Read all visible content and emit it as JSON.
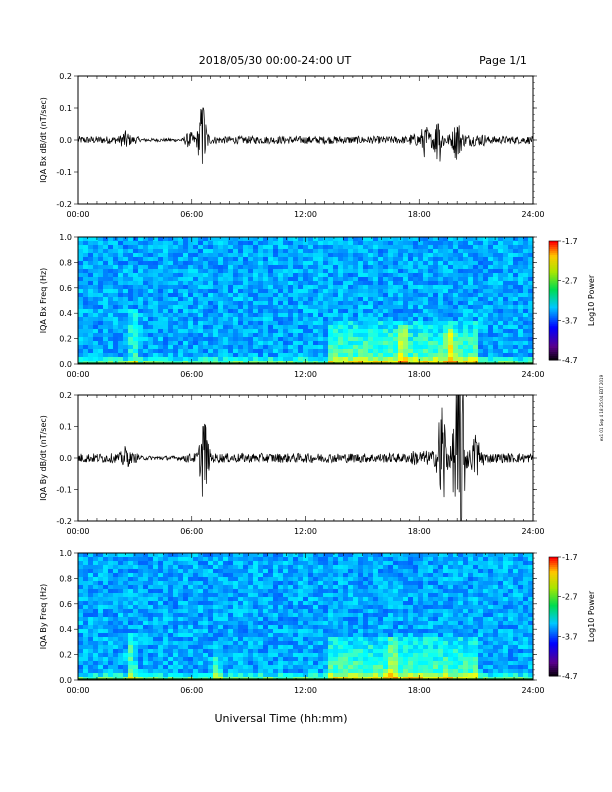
{
  "header": {
    "title": "2018/05/30  00:00-24:00 UT",
    "page": "Page 1/1"
  },
  "footer": {
    "xlabel": "Universal Time (hh:mm)",
    "side_note": "ex1 01 Sep 4 18:25:04 EDT 2019"
  },
  "colorbar": {
    "label": "Log10 Power",
    "ticks": [
      "-1.7",
      "-2.7",
      "-3.7",
      "-4.7"
    ]
  },
  "chart_data": [
    {
      "type": "line",
      "ylabel": "IQA Bx dB/dt (nT/sec)",
      "ylim": [
        -0.2,
        0.2
      ],
      "yticks": [
        "0.2",
        "0.1",
        "0.0",
        "-0.1",
        "-0.2"
      ],
      "xticks": [
        "00:00",
        "06:00",
        "12:00",
        "18:00",
        "24:00"
      ],
      "xlim_hours": [
        0,
        24
      ],
      "baseline_amplitude": 0.012,
      "bursts": [
        {
          "t": 2.5,
          "amp": 0.03
        },
        {
          "t": 5.9,
          "amp": 0.02
        },
        {
          "t": 6.5,
          "amp": 0.05
        },
        {
          "t": 6.6,
          "amp": 0.1
        },
        {
          "t": 18.3,
          "amp": 0.03
        },
        {
          "t": 19.0,
          "amp": 0.05
        },
        {
          "t": 20.0,
          "amp": 0.04
        }
      ],
      "color": "#000000"
    },
    {
      "type": "heatmap",
      "ylabel": "IQA Bx Freq (Hz)",
      "ylim": [
        0,
        1.0
      ],
      "yticks": [
        "1.0",
        "0.8",
        "0.6",
        "0.4",
        "0.2",
        "0.0"
      ],
      "xticks": [
        "00:00",
        "06:00",
        "12:00",
        "18:00",
        "24:00"
      ],
      "zlim": [
        -4.7,
        -1.7
      ],
      "color_scale": "log10 power",
      "features": [
        {
          "t": 2.8,
          "f_max": 0.45,
          "level": -3.1
        },
        {
          "t": 17.0,
          "f_max": 0.32,
          "level": -3.0
        },
        {
          "t": 19.5,
          "f_max": 0.28,
          "level": -3.1
        }
      ]
    },
    {
      "type": "line",
      "ylabel": "IQA By dB/dt (nT/sec)",
      "ylim": [
        -0.2,
        0.2
      ],
      "yticks": [
        "0.2",
        "0.1",
        "0.0",
        "-0.1",
        "-0.2"
      ],
      "xticks": [
        "00:00",
        "06:00",
        "12:00",
        "18:00",
        "24:00"
      ],
      "xlim_hours": [
        0,
        24
      ],
      "baseline_amplitude": 0.015,
      "bursts": [
        {
          "t": 2.5,
          "amp": 0.03
        },
        {
          "t": 6.6,
          "amp": 0.1
        },
        {
          "t": 6.7,
          "amp": -0.07
        },
        {
          "t": 19.2,
          "amp": 0.16
        },
        {
          "t": 20.0,
          "amp": 0.2
        },
        {
          "t": 20.2,
          "amp": -0.21
        },
        {
          "t": 21.0,
          "amp": 0.05
        }
      ],
      "color": "#000000"
    },
    {
      "type": "heatmap",
      "ylabel": "IQA By Freq (Hz)",
      "ylim": [
        0,
        1.0
      ],
      "yticks": [
        "1.0",
        "0.8",
        "0.6",
        "0.4",
        "0.2",
        "0.0"
      ],
      "xticks": [
        "00:00",
        "06:00",
        "12:00",
        "18:00",
        "24:00"
      ],
      "zlim": [
        -4.7,
        -1.7
      ],
      "color_scale": "log10 power",
      "features": [
        {
          "t": 2.7,
          "f_max": 0.4,
          "level": -3.0
        },
        {
          "t": 7.2,
          "f_max": 0.2,
          "level": -3.1
        },
        {
          "t": 16.5,
          "f_max": 0.35,
          "level": -3.0
        }
      ]
    }
  ]
}
